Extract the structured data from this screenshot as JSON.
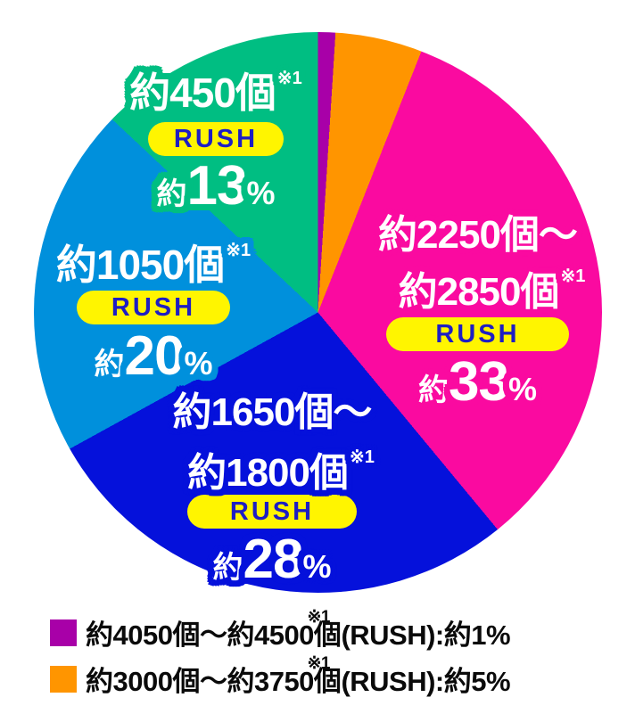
{
  "chart_data": {
    "type": "pie",
    "title": "",
    "start_angle_deg": 0,
    "direction": "clockwise",
    "slices": [
      {
        "name": "purple",
        "label": "約4050個～約4500個(RUSH)",
        "percent": 1,
        "color": "#A800A8"
      },
      {
        "name": "orange",
        "label": "約3000個～約3750個(RUSH)",
        "percent": 5,
        "color": "#FF9500"
      },
      {
        "name": "pink",
        "label": "約2250個～約2850個(RUSH)",
        "percent": 33,
        "color": "#FA0AA0"
      },
      {
        "name": "blue",
        "label": "約1650個～約1800個(RUSH)",
        "percent": 28,
        "color": "#0511DB"
      },
      {
        "name": "light-blue",
        "label": "約1050個(RUSH)",
        "percent": 20,
        "color": "#0090DC"
      },
      {
        "name": "green",
        "label": "約450個(RUSH)",
        "percent": 13,
        "color": "#00BE82"
      }
    ],
    "footnote_marker": "※1"
  },
  "pie_labels": {
    "green": {
      "line1": "約450個",
      "sup": "※1",
      "rush": "RUSH",
      "approx": "約",
      "pct": "13",
      "unit": "%"
    },
    "light_blue": {
      "line1": "約1050個",
      "sup": "※1",
      "rush": "RUSH",
      "approx": "約",
      "pct": "20",
      "unit": "%"
    },
    "blue": {
      "line1": "約1650個～",
      "line2": "約1800個",
      "sup": "※1",
      "rush": "RUSH",
      "approx": "約",
      "pct": "28",
      "unit": "%"
    },
    "pink": {
      "line1": "約2250個～",
      "line2": "約2850個",
      "sup": "※1",
      "rush": "RUSH",
      "approx": "約",
      "pct": "33",
      "unit": "%"
    }
  },
  "legend": {
    "rows": [
      {
        "color": "#A800A8",
        "text": "約4050個～約4500個",
        "sup": "※1",
        "rest": "(RUSH):約1%"
      },
      {
        "color": "#FF9500",
        "text": "約3000個～約3750個",
        "sup": "※1",
        "rest": "(RUSH):約5%"
      }
    ]
  },
  "ui": {
    "rush_pill_bg": "#FFF500",
    "rush_text_color": "#1E1EC3",
    "legend_text_color": "#0A0A0A",
    "background": "#FFFFFF"
  }
}
